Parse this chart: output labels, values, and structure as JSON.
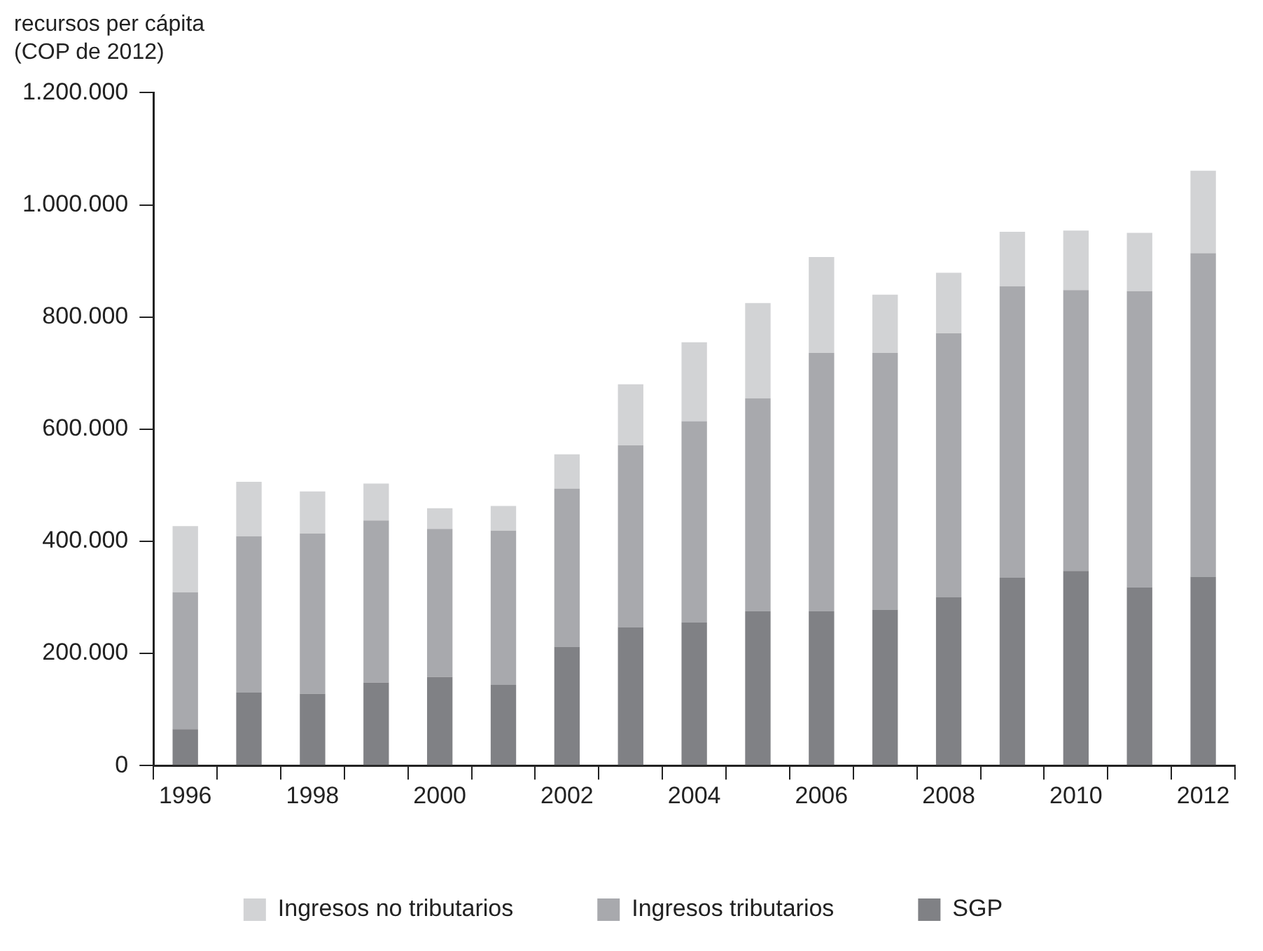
{
  "chart_data": {
    "type": "bar",
    "stacked": true,
    "ylabel": "recursos per cápita\n(COP de 2012)",
    "categories": [
      "1996",
      null,
      "1998",
      null,
      "2000",
      null,
      "2002",
      null,
      "2004",
      null,
      "2006",
      null,
      "2008",
      null,
      "2010",
      null,
      "2012"
    ],
    "series": [
      {
        "name": "SGP",
        "color": "#808185",
        "values": [
          65000,
          130000,
          128000,
          148000,
          158000,
          144000,
          212000,
          247000,
          255000,
          275000,
          275000,
          278000,
          300000,
          335000,
          347000,
          318000,
          337000
        ]
      },
      {
        "name": "Ingresos tributarios",
        "color": "#a8a9ad",
        "values": [
          244000,
          279000,
          286000,
          289000,
          264000,
          275000,
          282000,
          324000,
          359000,
          380000,
          461000,
          458000,
          471000,
          520000,
          501000,
          528000,
          577000
        ]
      },
      {
        "name": "Ingresos no tributarios",
        "color": "#d2d3d5",
        "values": [
          118000,
          97000,
          75000,
          66000,
          37000,
          44000,
          61000,
          109000,
          141000,
          170000,
          171000,
          104000,
          108000,
          97000,
          106000,
          104000,
          147000
        ]
      }
    ],
    "ylim": [
      0,
      1200000
    ],
    "yticks": [
      0,
      {
        "value": 200000,
        "label": "200.000"
      },
      {
        "value": 400000,
        "label": "400.000"
      },
      {
        "value": 600000,
        "label": "600.000"
      },
      {
        "value": 800000,
        "label": "800.000"
      },
      {
        "value": 1000000,
        "label": "1.000.000"
      },
      {
        "value": 1200000,
        "label": "1.200.000"
      }
    ],
    "grid": false,
    "legend": "bottom"
  }
}
